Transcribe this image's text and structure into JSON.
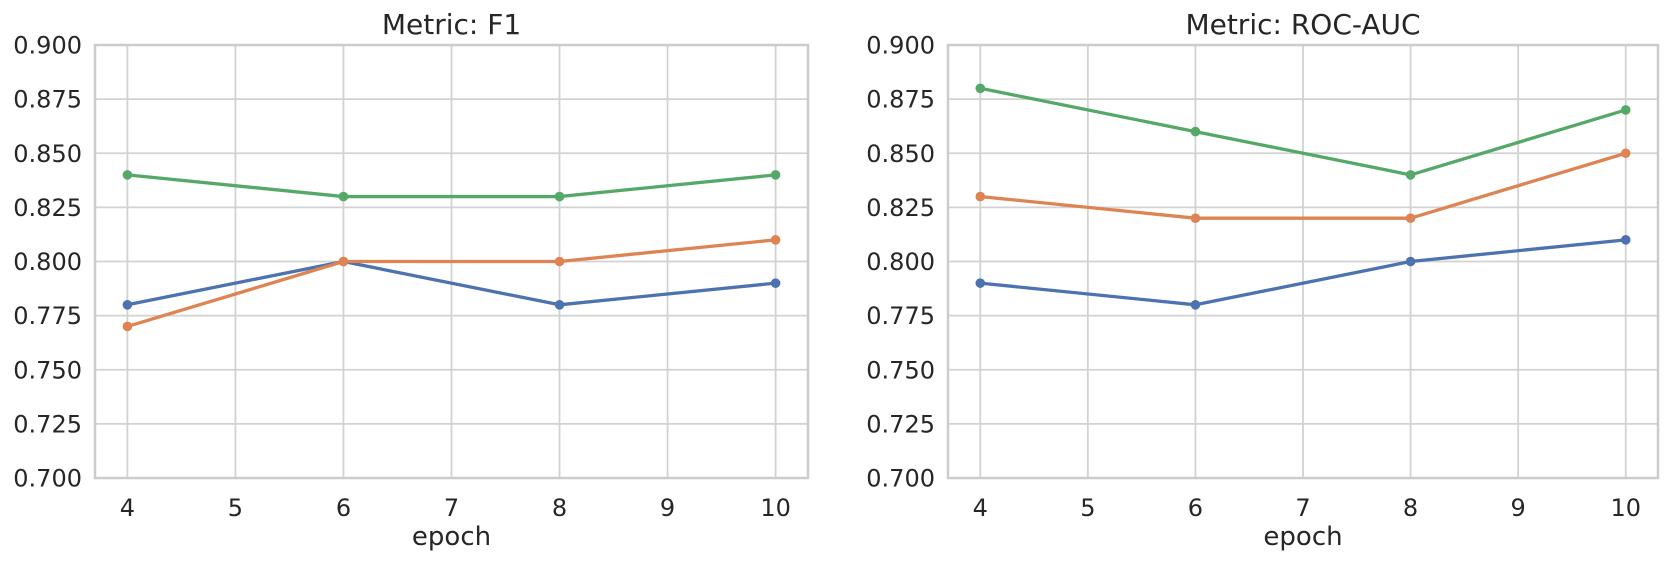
{
  "figure": {
    "background": "#ffffff",
    "text_color": "#262626",
    "grid_color": "#d2d2d2",
    "spine_color": "#cccccc"
  },
  "chart_data": [
    {
      "type": "line",
      "title": "Metric: F1",
      "xlabel": "epoch",
      "ylabel": "",
      "grid": true,
      "legend": "none",
      "marker": "circle",
      "xlim": [
        3.7,
        10.3
      ],
      "ylim": [
        0.7,
        0.9
      ],
      "x": [
        4,
        6,
        8,
        10
      ],
      "xticks": [
        4,
        5,
        6,
        7,
        8,
        9,
        10
      ],
      "xtick_labels": [
        "4",
        "5",
        "6",
        "7",
        "8",
        "9",
        "10"
      ],
      "ytick_values": [
        0.7,
        0.725,
        0.75,
        0.775,
        0.8,
        0.825,
        0.85,
        0.875,
        0.9
      ],
      "ytick_labels": [
        "0.700",
        "0.725",
        "0.750",
        "0.775",
        "0.800",
        "0.825",
        "0.850",
        "0.875",
        "0.900"
      ],
      "series": [
        {
          "name": "blue",
          "color": "#4C72B0",
          "values": [
            0.78,
            0.8,
            0.78,
            0.79
          ]
        },
        {
          "name": "orange",
          "color": "#DD8452",
          "values": [
            0.77,
            0.8,
            0.8,
            0.81
          ]
        },
        {
          "name": "green",
          "color": "#55A868",
          "values": [
            0.84,
            0.83,
            0.83,
            0.84
          ]
        }
      ]
    },
    {
      "type": "line",
      "title": "Metric: ROC-AUC",
      "xlabel": "epoch",
      "ylabel": "",
      "grid": true,
      "legend": "none",
      "marker": "circle",
      "xlim": [
        3.7,
        10.3
      ],
      "ylim": [
        0.7,
        0.9
      ],
      "x": [
        4,
        6,
        8,
        10
      ],
      "xticks": [
        4,
        5,
        6,
        7,
        8,
        9,
        10
      ],
      "xtick_labels": [
        "4",
        "5",
        "6",
        "7",
        "8",
        "9",
        "10"
      ],
      "ytick_values": [
        0.7,
        0.725,
        0.75,
        0.775,
        0.8,
        0.825,
        0.85,
        0.875,
        0.9
      ],
      "ytick_labels": [
        "0.700",
        "0.725",
        "0.750",
        "0.775",
        "0.800",
        "0.825",
        "0.850",
        "0.875",
        "0.900"
      ],
      "series": [
        {
          "name": "blue",
          "color": "#4C72B0",
          "values": [
            0.79,
            0.78,
            0.8,
            0.81
          ]
        },
        {
          "name": "orange",
          "color": "#DD8452",
          "values": [
            0.83,
            0.82,
            0.82,
            0.85
          ]
        },
        {
          "name": "green",
          "color": "#55A868",
          "values": [
            0.88,
            0.86,
            0.84,
            0.87
          ]
        }
      ]
    }
  ]
}
